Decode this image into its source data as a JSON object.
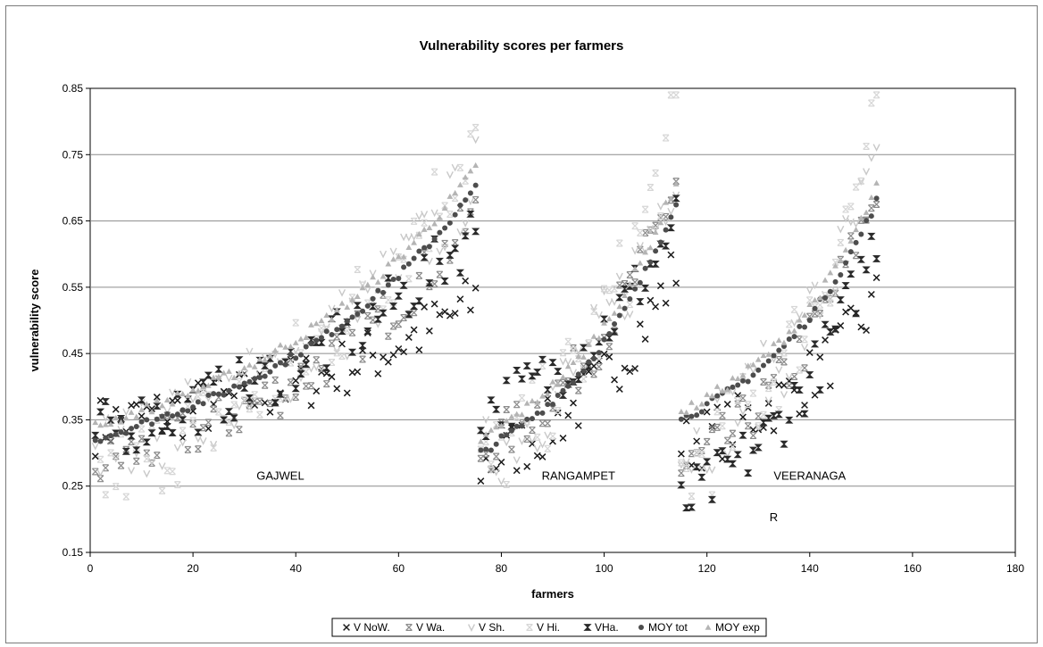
{
  "chart_data": {
    "type": "scatter",
    "title": "Vulnerability scores per farmers",
    "xlabel": "farmers",
    "ylabel": "vulnerability score",
    "xlim": [
      0,
      180
    ],
    "ylim": [
      0.15,
      0.85
    ],
    "xticks": [
      "0",
      "20",
      "40",
      "60",
      "80",
      "100",
      "120",
      "140",
      "160",
      "180"
    ],
    "yticks": [
      "0.15",
      "0.25",
      "0.35",
      "0.45",
      "0.55",
      "0.65",
      "0.75",
      "0.85"
    ],
    "grid": "horizontal",
    "legend_position": "bottom",
    "annotations": [
      {
        "text": "GAJWEL",
        "x": 37,
        "y": 0.26
      },
      {
        "text": "RANGAMPET",
        "x": 95,
        "y": 0.26
      },
      {
        "text": "VEERANAGA",
        "x": 140,
        "y": 0.26
      },
      {
        "text": "R",
        "x": 133,
        "y": 0.197
      }
    ],
    "series": [
      {
        "name": "V NoW.",
        "marker": "x",
        "color": "#1a1a1a",
        "segments": [
          {
            "x": [
              1,
              75
            ],
            "y": [
              0.34,
              0.53
            ]
          },
          {
            "x": [
              76,
              114
            ],
            "y": [
              0.28,
              0.58
            ]
          },
          {
            "x": [
              115,
              153
            ],
            "y": [
              0.31,
              0.53
            ]
          }
        ]
      },
      {
        "name": "V Wa.",
        "marker": "x-bar",
        "color": "#8a8a8a",
        "segments": [
          {
            "x": [
              1,
              75
            ],
            "y": [
              0.28,
              0.66
            ]
          },
          {
            "x": [
              76,
              114
            ],
            "y": [
              0.3,
              0.71
            ]
          },
          {
            "x": [
              115,
              153
            ],
            "y": [
              0.27,
              0.7
            ]
          }
        ]
      },
      {
        "name": "V Sh.",
        "marker": "v",
        "color": "#c8c8c8",
        "segments": [
          {
            "x": [
              1,
              75
            ],
            "y": [
              0.3,
              0.72
            ]
          },
          {
            "x": [
              76,
              114
            ],
            "y": [
              0.29,
              0.74
            ]
          },
          {
            "x": [
              115,
              153
            ],
            "y": [
              0.3,
              0.73
            ]
          }
        ]
      },
      {
        "name": "V Hi.",
        "marker": "x-bar",
        "color": "#d6d6d6",
        "segments": [
          {
            "x": [
              1,
              75
            ],
            "y": [
              0.26,
              0.78
            ]
          },
          {
            "x": [
              76,
              114
            ],
            "y": [
              0.27,
              0.8
            ]
          },
          {
            "x": [
              115,
              153
            ],
            "y": [
              0.26,
              0.8
            ]
          }
        ]
      },
      {
        "name": "VHa.",
        "marker": "hourglass",
        "color": "#2a2a2a",
        "segments": [
          {
            "x": [
              1,
              75
            ],
            "y": [
              0.33,
              0.64
            ]
          },
          {
            "x": [
              76,
              114
            ],
            "y": [
              0.36,
              0.65
            ]
          },
          {
            "x": [
              115,
              153
            ],
            "y": [
              0.22,
              0.63
            ]
          }
        ]
      },
      {
        "name": "MOY tot",
        "marker": "circle",
        "color": "#4d4d4d",
        "segments": [
          {
            "x": [
              1,
              75
            ],
            "y": [
              0.32,
              0.7
            ]
          },
          {
            "x": [
              76,
              114
            ],
            "y": [
              0.3,
              0.68
            ]
          },
          {
            "x": [
              115,
              153
            ],
            "y": [
              0.35,
              0.68
            ]
          }
        ]
      },
      {
        "name": "MOY exp",
        "marker": "triangle",
        "color": "#b4b4b4",
        "segments": [
          {
            "x": [
              1,
              75
            ],
            "y": [
              0.34,
              0.73
            ]
          },
          {
            "x": [
              76,
              114
            ],
            "y": [
              0.32,
              0.71
            ]
          },
          {
            "x": [
              115,
              153
            ],
            "y": [
              0.36,
              0.7
            ]
          }
        ]
      }
    ]
  }
}
